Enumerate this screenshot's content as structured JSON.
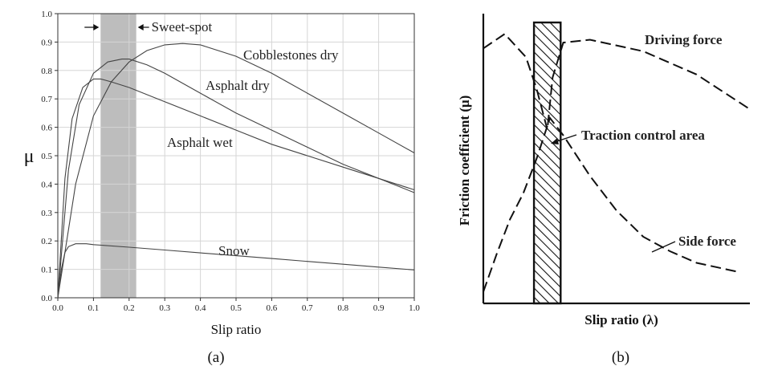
{
  "chart_data": [
    {
      "type": "line",
      "panel_label": "(a)",
      "xlabel": "Slip ratio",
      "ylabel": "μ",
      "xlim": [
        0.0,
        1.0
      ],
      "ylim": [
        0.0,
        1.0
      ],
      "xticks": [
        "0.0",
        "0.1",
        "0.2",
        "0.3",
        "0.4",
        "0.5",
        "0.6",
        "0.7",
        "0.8",
        "0.9",
        "1.0"
      ],
      "yticks": [
        "0.0",
        "0.1",
        "0.2",
        "0.3",
        "0.4",
        "0.5",
        "0.6",
        "0.7",
        "0.8",
        "0.9",
        "1.0"
      ],
      "grid": true,
      "band": {
        "label": "Sweet-spot",
        "x_range": [
          0.12,
          0.22
        ],
        "color": "#bdbdbd"
      },
      "series": [
        {
          "name": "Cobblestones dry",
          "x": [
            0.0,
            0.05,
            0.1,
            0.15,
            0.2,
            0.25,
            0.3,
            0.35,
            0.4,
            0.5,
            0.6,
            0.7,
            0.8,
            0.9,
            1.0
          ],
          "y": [
            0.0,
            0.4,
            0.64,
            0.76,
            0.83,
            0.87,
            0.89,
            0.895,
            0.89,
            0.85,
            0.79,
            0.72,
            0.65,
            0.58,
            0.51
          ]
        },
        {
          "name": "Asphalt dry",
          "x": [
            0.0,
            0.03,
            0.06,
            0.1,
            0.14,
            0.18,
            0.2,
            0.25,
            0.3,
            0.4,
            0.5,
            0.6,
            0.7,
            0.8,
            0.9,
            1.0
          ],
          "y": [
            0.0,
            0.45,
            0.68,
            0.79,
            0.83,
            0.84,
            0.84,
            0.82,
            0.79,
            0.72,
            0.65,
            0.59,
            0.53,
            0.47,
            0.42,
            0.37
          ]
        },
        {
          "name": "Asphalt wet",
          "x": [
            0.0,
            0.02,
            0.04,
            0.07,
            0.1,
            0.12,
            0.15,
            0.2,
            0.3,
            0.4,
            0.5,
            0.6,
            0.7,
            0.8,
            0.9,
            1.0
          ],
          "y": [
            0.0,
            0.42,
            0.63,
            0.74,
            0.77,
            0.77,
            0.76,
            0.74,
            0.69,
            0.64,
            0.59,
            0.54,
            0.5,
            0.46,
            0.42,
            0.38
          ]
        },
        {
          "name": "Snow",
          "x": [
            0.0,
            0.01,
            0.02,
            0.03,
            0.05,
            0.08,
            0.1,
            0.2,
            0.3,
            0.4,
            0.5,
            0.6,
            0.7,
            0.8,
            0.9,
            1.0
          ],
          "y": [
            0.0,
            0.1,
            0.16,
            0.18,
            0.19,
            0.19,
            0.187,
            0.178,
            0.168,
            0.158,
            0.148,
            0.138,
            0.128,
            0.118,
            0.108,
            0.098
          ]
        }
      ]
    },
    {
      "type": "line",
      "panel_label": "(b)",
      "xlabel": "Slip ratio (λ)",
      "ylabel": "Friction coefficient (μ)",
      "xticks": [],
      "yticks": [],
      "band": {
        "label": "Traction control area",
        "x_range": [
          0.19,
          0.29
        ],
        "pattern": "hatched"
      },
      "series": [
        {
          "name": "Driving force",
          "x": [
            0.0,
            0.08,
            0.16,
            0.2,
            0.24,
            0.26,
            0.3,
            0.4,
            0.6,
            0.8,
            1.0
          ],
          "y": [
            0.88,
            0.93,
            0.85,
            0.74,
            0.6,
            0.78,
            0.9,
            0.91,
            0.87,
            0.79,
            0.67
          ]
        },
        {
          "name": "Side force",
          "x": [
            0.0,
            0.05,
            0.1,
            0.15,
            0.2,
            0.25,
            0.3,
            0.4,
            0.5,
            0.6,
            0.7,
            0.8,
            0.9,
            0.95
          ],
          "y": [
            0.04,
            0.17,
            0.29,
            0.38,
            0.5,
            0.64,
            0.58,
            0.44,
            0.32,
            0.23,
            0.18,
            0.14,
            0.12,
            0.11
          ]
        }
      ]
    }
  ]
}
